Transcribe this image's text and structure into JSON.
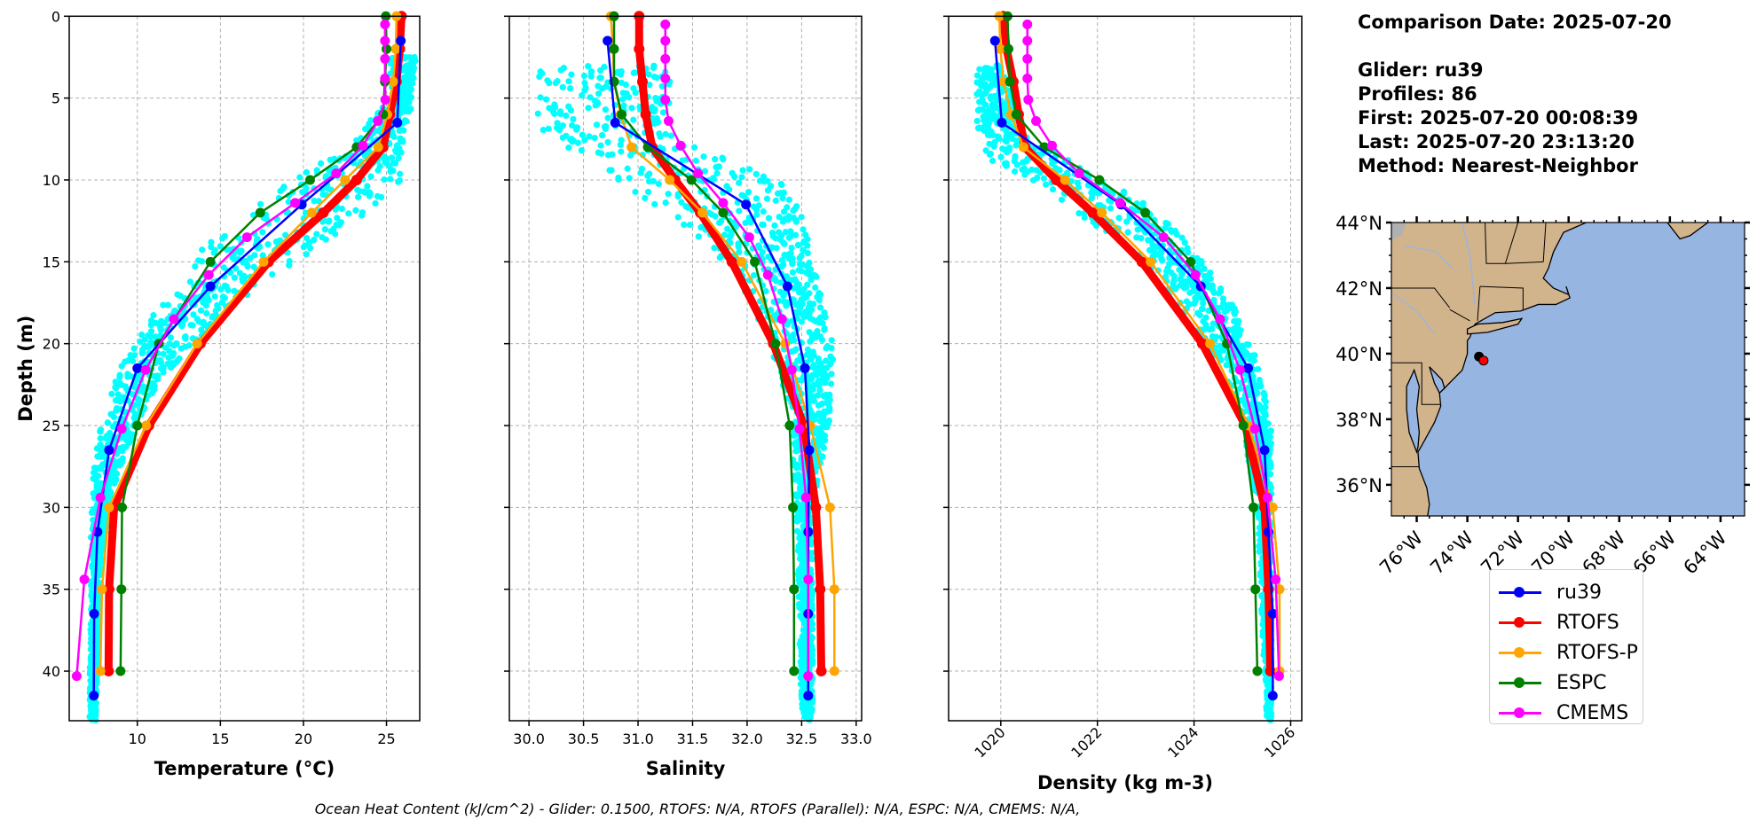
{
  "info": {
    "comparison_date": "Comparison Date: 2025-07-20",
    "glider": "Glider: ru39",
    "profiles": "Profiles: 86",
    "first": "First: 2025-07-20 00:08:39",
    "last": "Last: 2025-07-20 23:13:20",
    "method": "Method: Nearest-Neighbor"
  },
  "caption": "Ocean Heat Content (kJ/cm^2) - Glider: 0.1500,  RTOFS: N/A,  RTOFS (Parallel): N/A,  ESPC: N/A,  CMEMS: N/A,",
  "legend": {
    "placement": "below-map",
    "items": [
      {
        "label": "ru39",
        "color": "#0000ff"
      },
      {
        "label": "RTOFS",
        "color": "#ff0000"
      },
      {
        "label": "RTOFS-P",
        "color": "#ffa500"
      },
      {
        "label": "ESPC",
        "color": "#008000"
      },
      {
        "label": "CMEMS",
        "color": "#ff00ff"
      }
    ]
  },
  "chart_data": [
    {
      "type": "line",
      "id": "temperature",
      "xlabel": "Temperature (°C)",
      "ylabel": "Depth (m)",
      "xlim": [
        5.9,
        27.0
      ],
      "ylim": [
        43,
        0
      ],
      "xticks": [
        "10",
        "15",
        "20",
        "25"
      ],
      "yticks": [
        "0",
        "5",
        "10",
        "15",
        "20",
        "25",
        "30",
        "35",
        "40"
      ],
      "grid": true,
      "glider_scatter_color": "#00ffff",
      "glider_envelope": [
        [
          2.5,
          25.0,
          26.8
        ],
        [
          5,
          25.3,
          26.6
        ],
        [
          8,
          22.5,
          26.0
        ],
        [
          10,
          19.0,
          26.0
        ],
        [
          12,
          16.5,
          24.0
        ],
        [
          14,
          14.0,
          21.0
        ],
        [
          16,
          12.5,
          18.0
        ],
        [
          18,
          11.0,
          15.5
        ],
        [
          20,
          9.8,
          13.5
        ],
        [
          22,
          8.7,
          11.5
        ],
        [
          25,
          7.8,
          10.0
        ],
        [
          28,
          7.3,
          8.8
        ],
        [
          32,
          7.2,
          8.0
        ],
        [
          36,
          7.2,
          7.7
        ],
        [
          43,
          7.1,
          7.5
        ]
      ],
      "series": [
        {
          "name": "RTOFS",
          "color": "#ff0000",
          "depth": [
            0,
            2,
            4,
            6,
            8,
            10,
            12,
            15,
            20,
            25,
            30,
            35,
            40
          ],
          "values": [
            25.9,
            25.8,
            25.6,
            25.2,
            24.8,
            23.2,
            21.2,
            17.9,
            13.8,
            10.7,
            8.6,
            8.3,
            8.27
          ]
        },
        {
          "name": "RTOFS-P",
          "color": "#ffa500",
          "depth": [
            0,
            2,
            4,
            6,
            8,
            10,
            12,
            15,
            20,
            25,
            30,
            35,
            40
          ],
          "values": [
            25.6,
            25.56,
            25.4,
            25.05,
            24.5,
            22.5,
            20.5,
            17.6,
            13.6,
            10.53,
            8.3,
            7.87,
            7.78
          ]
        },
        {
          "name": "ESPC",
          "color": "#008000",
          "depth": [
            0,
            2,
            4,
            6,
            8,
            10,
            12,
            15,
            20,
            25,
            30,
            35,
            40
          ],
          "values": [
            24.96,
            25.0,
            24.9,
            24.8,
            23.2,
            20.4,
            17.4,
            14.4,
            11.3,
            10.0,
            9.08,
            9.04,
            8.99
          ]
        },
        {
          "name": "ru39",
          "color": "#0000ff",
          "depth": [
            1.5,
            6.5,
            11.5,
            16.5,
            21.5,
            26.5,
            31.5,
            36.5,
            41.5
          ],
          "values": [
            25.86,
            25.65,
            19.9,
            14.4,
            10.0,
            8.3,
            7.6,
            7.4,
            7.38
          ]
        },
        {
          "name": "CMEMS",
          "color": "#ff00ff",
          "depth": [
            0.5,
            1.5,
            2.6,
            3.8,
            5.1,
            6.4,
            7.9,
            9.6,
            11.4,
            13.5,
            15.8,
            18.5,
            21.6,
            25.2,
            29.4,
            34.4,
            40.3
          ],
          "values": [
            24.91,
            24.91,
            24.91,
            24.91,
            24.93,
            24.48,
            23.58,
            21.97,
            19.5,
            16.6,
            14.3,
            12.2,
            10.5,
            9.06,
            7.78,
            6.81,
            6.35
          ]
        }
      ]
    },
    {
      "type": "line",
      "id": "salinity",
      "xlabel": "Salinity",
      "xlim": [
        29.82,
        33.05
      ],
      "ylim": [
        43,
        0
      ],
      "xticks": [
        "30.0",
        "30.5",
        "31.0",
        "31.5",
        "32.0",
        "32.5",
        "33.0"
      ],
      "grid": true,
      "glider_scatter_color": "#00ffff",
      "glider_envelope": [
        [
          3,
          30.05,
          31.3
        ],
        [
          5,
          30.05,
          31.3
        ],
        [
          7,
          30.05,
          31.2
        ],
        [
          9,
          30.5,
          31.9
        ],
        [
          10,
          30.8,
          32.3
        ],
        [
          12,
          31.2,
          32.5
        ],
        [
          15,
          31.8,
          32.6
        ],
        [
          20,
          32.2,
          32.8
        ],
        [
          25,
          32.4,
          32.75
        ],
        [
          30,
          32.45,
          32.6
        ],
        [
          43,
          32.5,
          32.6
        ]
      ],
      "series": [
        {
          "name": "RTOFS",
          "color": "#ff0000",
          "depth": [
            0,
            2,
            4,
            6,
            8,
            10,
            12,
            15,
            20,
            25,
            30,
            35,
            40
          ],
          "values": [
            31.01,
            31.01,
            31.04,
            31.07,
            31.13,
            31.34,
            31.57,
            31.86,
            32.24,
            32.52,
            32.63,
            32.67,
            32.68
          ]
        },
        {
          "name": "RTOFS-P",
          "color": "#ffa500",
          "depth": [
            0,
            2,
            4,
            6,
            8,
            10,
            12,
            15,
            20,
            25,
            30,
            35,
            40
          ],
          "values": [
            30.75,
            30.77,
            30.78,
            30.84,
            30.94,
            31.29,
            31.59,
            31.95,
            32.35,
            32.58,
            32.76,
            32.8,
            32.8
          ]
        },
        {
          "name": "ESPC",
          "color": "#008000",
          "depth": [
            0,
            2,
            4,
            6,
            8,
            10,
            12,
            15,
            20,
            25,
            30,
            35,
            40
          ],
          "values": [
            30.78,
            30.78,
            30.78,
            30.85,
            31.09,
            31.49,
            31.78,
            32.07,
            32.26,
            32.39,
            32.42,
            32.43,
            32.43
          ]
        },
        {
          "name": "ru39",
          "color": "#0000ff",
          "depth": [
            1.5,
            6.5,
            11.5,
            16.5,
            21.5,
            26.5,
            31.5,
            36.5,
            41.5
          ],
          "values": [
            30.72,
            30.79,
            31.99,
            32.37,
            32.53,
            32.57,
            32.56,
            32.56,
            32.56
          ]
        },
        {
          "name": "CMEMS",
          "color": "#ff00ff",
          "depth": [
            0.5,
            1.5,
            2.6,
            3.8,
            5.1,
            6.4,
            7.9,
            9.6,
            11.4,
            13.5,
            15.8,
            18.5,
            21.6,
            25.2,
            29.4,
            34.4,
            40.3
          ],
          "values": [
            31.25,
            31.25,
            31.25,
            31.25,
            31.25,
            31.28,
            31.39,
            31.55,
            31.78,
            32.02,
            32.19,
            32.32,
            32.41,
            32.48,
            32.54,
            32.56,
            32.56
          ]
        }
      ]
    },
    {
      "type": "line",
      "id": "density",
      "xlabel": "Density (kg m-3)",
      "xlim": [
        1018.92,
        1026.23
      ],
      "ylim": [
        43,
        0
      ],
      "xticks": [
        "1020",
        "1022",
        "1024",
        "1026"
      ],
      "grid": true,
      "glider_scatter_color": "#00ffff",
      "glider_envelope": [
        [
          3,
          1019.5,
          1020.0
        ],
        [
          7,
          1019.5,
          1020.5
        ],
        [
          9,
          1019.7,
          1021.5
        ],
        [
          11,
          1021.0,
          1022.8
        ],
        [
          13,
          1022.0,
          1023.6
        ],
        [
          15,
          1022.8,
          1024.2
        ],
        [
          18,
          1023.7,
          1024.9
        ],
        [
          21,
          1024.5,
          1025.3
        ],
        [
          25,
          1025.0,
          1025.6
        ],
        [
          30,
          1025.3,
          1025.6
        ],
        [
          43,
          1025.5,
          1025.6
        ]
      ],
      "series": [
        {
          "name": "RTOFS",
          "color": "#ff0000",
          "depth": [
            0,
            2,
            4,
            6,
            8,
            10,
            12,
            15,
            20,
            25,
            30,
            35,
            40
          ],
          "values": [
            1020.05,
            1020.12,
            1020.26,
            1020.37,
            1020.5,
            1021.15,
            1021.9,
            1022.92,
            1024.17,
            1025.06,
            1025.46,
            1025.54,
            1025.58
          ]
        },
        {
          "name": "RTOFS-P",
          "color": "#ffa500",
          "depth": [
            0,
            2,
            4,
            6,
            8,
            10,
            12,
            15,
            20,
            25,
            30,
            35,
            40
          ],
          "values": [
            1019.97,
            1019.99,
            1020.06,
            1020.21,
            1020.47,
            1021.33,
            1022.09,
            1023.1,
            1024.33,
            1025.13,
            1025.63,
            1025.77,
            1025.77
          ]
        },
        {
          "name": "ESPC",
          "color": "#008000",
          "depth": [
            0,
            2,
            4,
            6,
            8,
            10,
            12,
            15,
            20,
            25,
            30,
            35,
            40
          ],
          "values": [
            1020.14,
            1020.16,
            1020.19,
            1020.32,
            1020.9,
            1022.04,
            1022.99,
            1023.93,
            1024.68,
            1025.02,
            1025.23,
            1025.27,
            1025.31
          ]
        },
        {
          "name": "ru39",
          "color": "#0000ff",
          "depth": [
            1.5,
            6.5,
            11.5,
            16.5,
            21.5,
            26.5,
            31.5,
            36.5,
            41.5
          ],
          "values": [
            1019.88,
            1020.02,
            1022.49,
            1024.14,
            1025.12,
            1025.46,
            1025.54,
            1025.63,
            1025.63
          ]
        },
        {
          "name": "CMEMS",
          "color": "#ff00ff",
          "depth": [
            0.5,
            1.5,
            2.6,
            3.8,
            5.1,
            6.4,
            7.9,
            9.6,
            11.4,
            13.5,
            15.8,
            18.5,
            21.6,
            25.2,
            29.4,
            34.4,
            40.3
          ],
          "values": [
            1020.55,
            1020.55,
            1020.55,
            1020.55,
            1020.57,
            1020.73,
            1021.06,
            1021.62,
            1022.47,
            1023.37,
            1024.03,
            1024.54,
            1024.95,
            1025.26,
            1025.52,
            1025.69,
            1025.76
          ]
        }
      ]
    },
    {
      "type": "map",
      "id": "location-map",
      "lon_range": [
        -77.0,
        -63.05
      ],
      "lat_range": [
        35.05,
        44.0
      ],
      "lat_ticks": [
        "44°N",
        "42°N",
        "40°N",
        "38°N",
        "36°N"
      ],
      "lon_ticks": [
        "76°W",
        "74°W",
        "72°W",
        "70°W",
        "68°W",
        "66°W",
        "64°W"
      ],
      "land_color": "#d2b48c",
      "ocean_color": "#97b5e1",
      "glider_track": [
        {
          "lon": -73.54,
          "lat": 39.91,
          "color": "#000000"
        },
        {
          "lon": -73.36,
          "lat": 39.79,
          "color": "#ff0000"
        }
      ]
    }
  ]
}
